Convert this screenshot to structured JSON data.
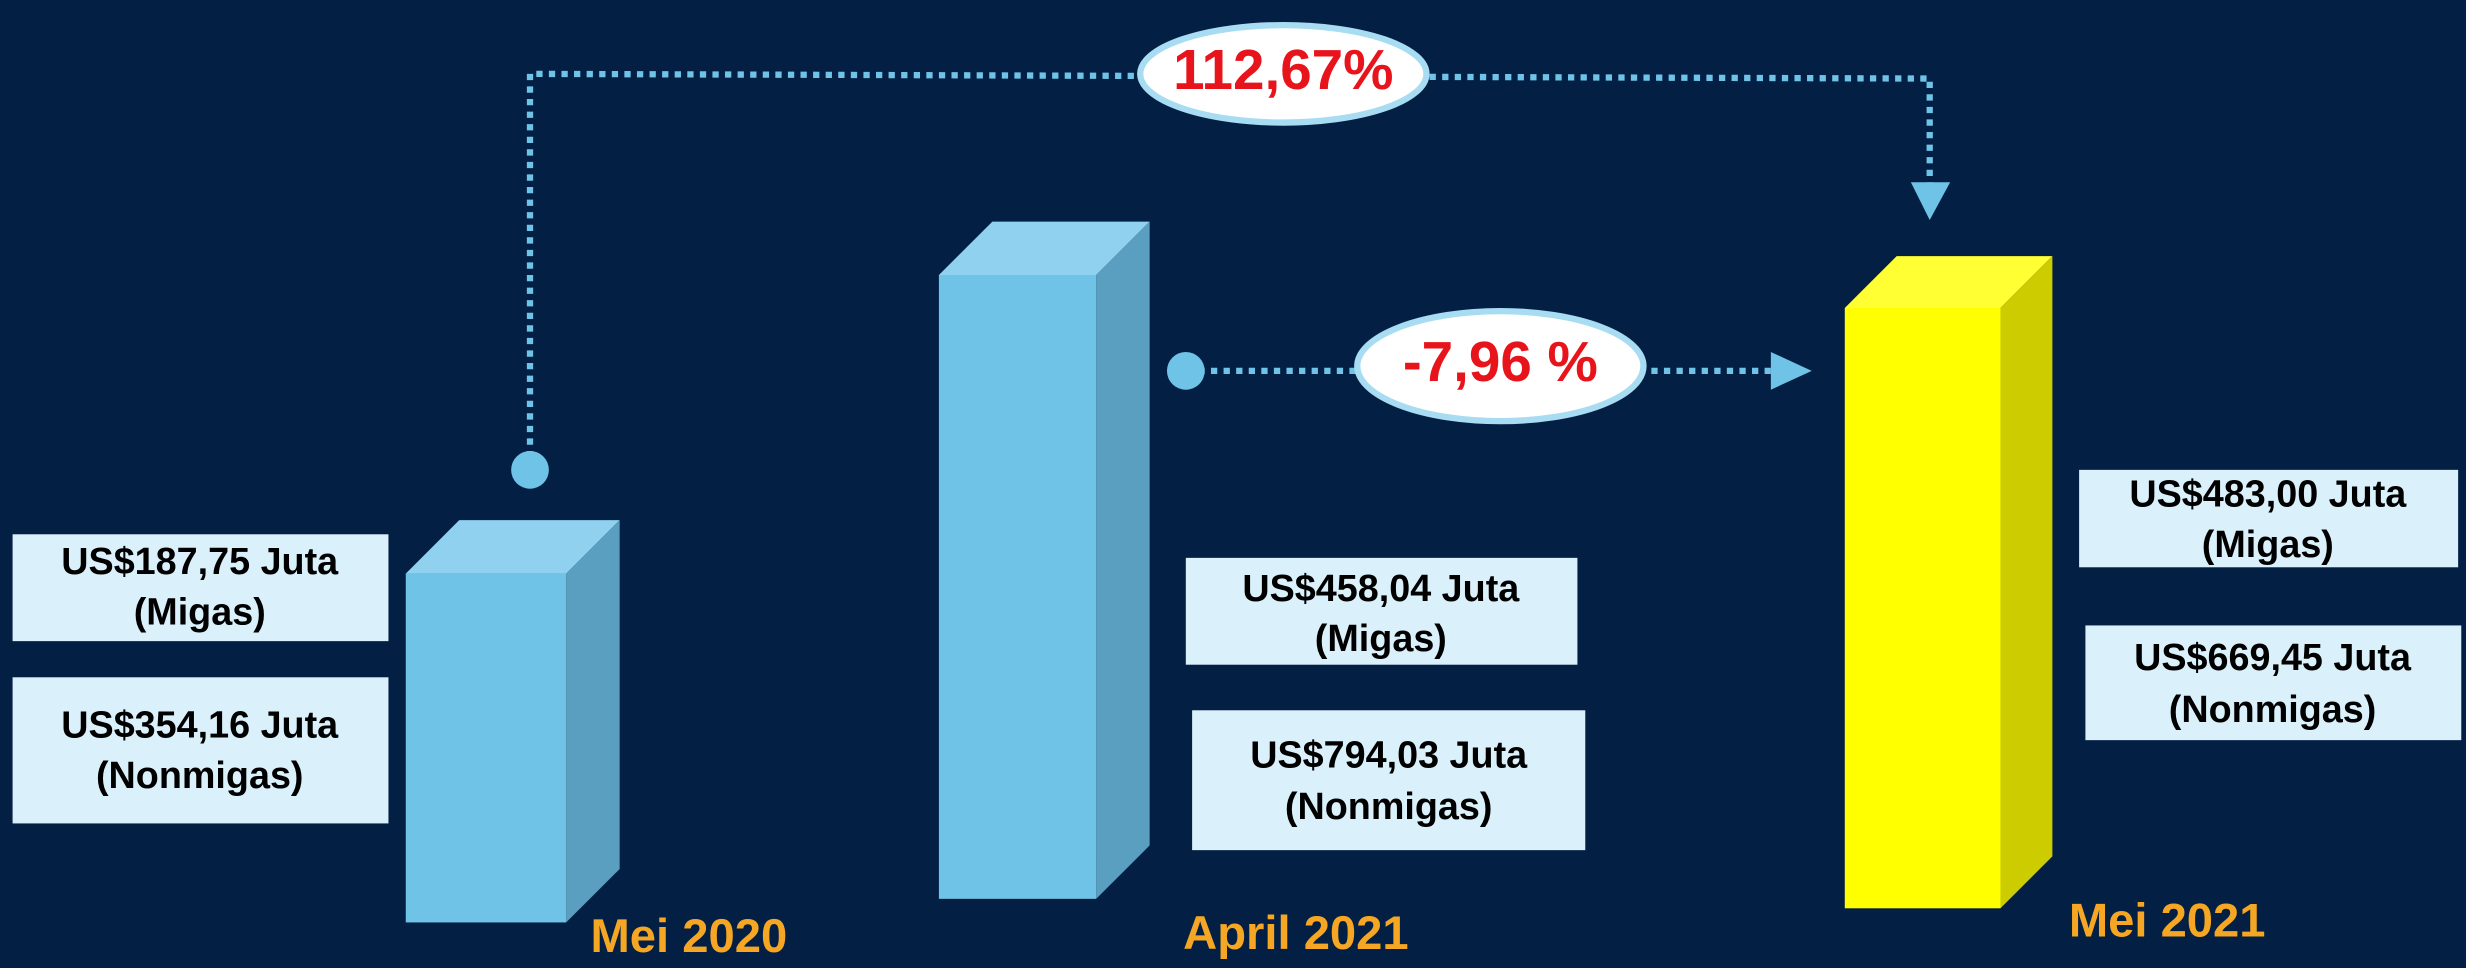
{
  "periods": [
    {
      "label": "Mei 2020",
      "migas_value": "US$187,75 Juta",
      "migas_label": "(Migas)",
      "nonmigas_value": "US$354,16 Juta",
      "nonmigas_label": "(Nonmigas)"
    },
    {
      "label": "April 2021",
      "migas_value": "US$458,04 Juta",
      "migas_label": "(Migas)",
      "nonmigas_value": "US$794,03 Juta",
      "nonmigas_label": "(Nonmigas)"
    },
    {
      "label": "Mei 2021",
      "migas_value": "US$483,00 Juta",
      "migas_label": "(Migas)",
      "nonmigas_value": "US$669,45 Juta",
      "nonmigas_label": "(Nonmigas)"
    }
  ],
  "changes": {
    "year_on_year": "112,67%",
    "month_on_month": "-7,96 %"
  }
}
